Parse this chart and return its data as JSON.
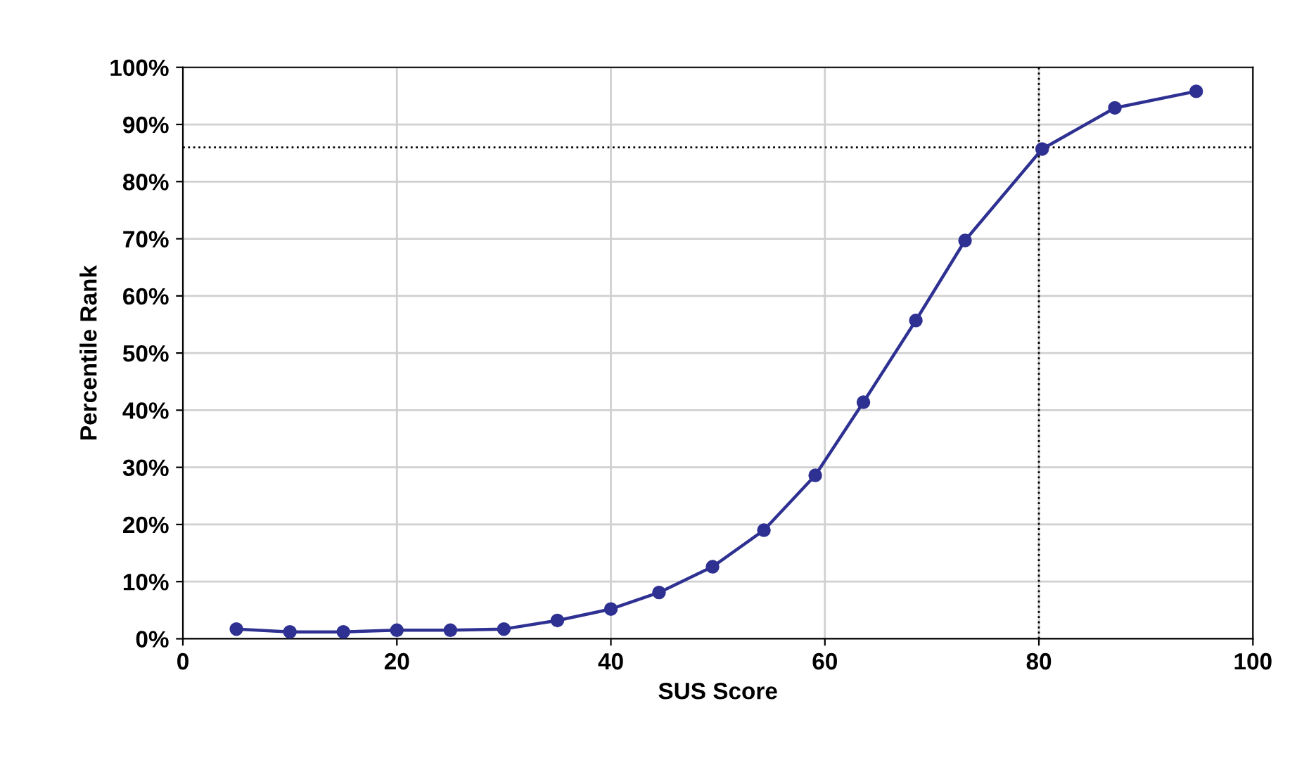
{
  "chart_data": {
    "type": "line",
    "xlabel": "SUS Score",
    "ylabel": "Percentile Rank",
    "x": [
      5,
      10,
      15,
      20,
      25,
      30,
      35,
      40,
      44.5,
      49.5,
      54.3,
      59.1,
      63.6,
      68.5,
      73.1,
      80.3,
      87.1,
      94.7
    ],
    "series": [
      {
        "color": "#2e3192",
        "values": [
          1.7,
          1.2,
          1.2,
          1.5,
          1.5,
          1.7,
          3.2,
          5.2,
          8.1,
          12.6,
          19,
          28.6,
          41.4,
          55.7,
          69.7,
          85.7,
          92.9,
          95.8
        ]
      }
    ],
    "marker": "circle",
    "line_style": "solid",
    "grid": true,
    "legend": false,
    "xlim": [
      0,
      100
    ],
    "xticks": [
      0,
      20,
      40,
      60,
      80,
      100
    ],
    "ylim": [
      0,
      100
    ],
    "yticks": [
      {
        "value": 0,
        "label": "0%"
      },
      {
        "value": 10,
        "label": "10%"
      },
      {
        "value": 20,
        "label": "20%"
      },
      {
        "value": 30,
        "label": "30%"
      },
      {
        "value": 40,
        "label": "40%"
      },
      {
        "value": 50,
        "label": "50%"
      },
      {
        "value": 60,
        "label": "60%"
      },
      {
        "value": 70,
        "label": "70%"
      },
      {
        "value": 80,
        "label": "80%"
      },
      {
        "value": 90,
        "label": "90%"
      },
      {
        "value": 100,
        "label": "100%"
      }
    ],
    "ref_lines": [
      {
        "axis": "x",
        "value": 80,
        "color": "#000000",
        "line_style": "dotted"
      },
      {
        "axis": "y",
        "value": 86,
        "color": "#000000",
        "line_style": "dotted"
      }
    ]
  }
}
